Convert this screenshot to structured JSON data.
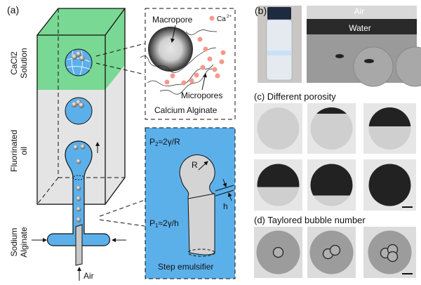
{
  "panel_a": {
    "label": "(a)",
    "side_labels": {
      "top_line1": "CaCl2",
      "top_line2": "Solution",
      "mid_line1": "Fluorinated",
      "mid_line2": "oil",
      "bot_line1": "Sodium",
      "bot_line2": "Alginate"
    },
    "air_label": "Air",
    "inset_top": {
      "macropore": "Macropore",
      "ion": "Ca",
      "ion_charge": "2+",
      "micropores": "Micropores",
      "caption": "Calcium Alginate"
    },
    "inset_bottom": {
      "p2_a": "P",
      "p2_sub": "2",
      "p2_b": "≈2γ/R",
      "p1_a": "P",
      "p1_sub": "1",
      "p1_b": "≈2γ/h",
      "r_label": "R",
      "h_label": "h",
      "caption": "Step emulsifier"
    }
  },
  "panel_b": {
    "label": "(b)",
    "air": "Air",
    "water": "Water"
  },
  "panel_c": {
    "label": "(c) Different porosity",
    "fill_levels": [
      0,
      0.15,
      0.45,
      0.55,
      0.75,
      1.0
    ]
  },
  "panel_d": {
    "label": "(d) Taylored bubble number",
    "bubble_counts": [
      1,
      2,
      3
    ]
  },
  "colors": {
    "green": "#79d893",
    "oil_grey": "#e4e4e4",
    "blue": "#5cb0ea",
    "calcium_pink": "#f6998d"
  }
}
